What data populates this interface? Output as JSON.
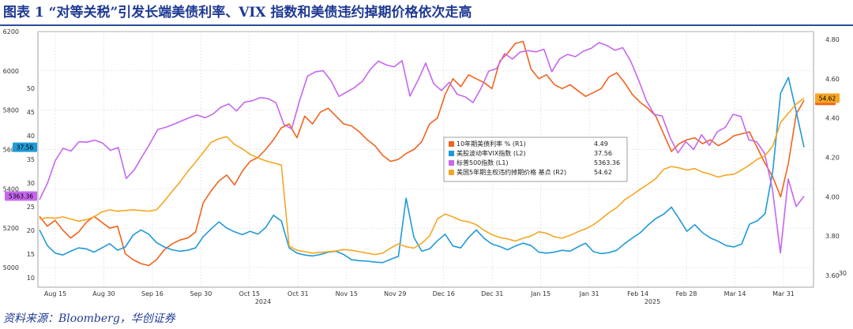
{
  "header": {
    "title": "图表 1  “对等关税”引发长端美债利率、VIX 指数和美债违约掉期价格依次走高"
  },
  "footer": {
    "source": "资料来源：Bloomberg，华创证券"
  },
  "colors": {
    "ust10y": "#f0641e",
    "vix": "#1f9ad6",
    "spx": "#c667ee",
    "cds": "#f5a623",
    "grid": "#d9d9d9"
  },
  "chart_data": {
    "type": "line",
    "title": "",
    "x_ticks": [
      "Aug 15",
      "Aug 30",
      "Sep 16",
      "Sep 30",
      "Oct 15",
      "Oct 31",
      "Nov 15",
      "Nov 29",
      "Dec 16",
      "Dec 31",
      "Jan 15",
      "Jan 31",
      "Feb 14",
      "Feb 28",
      "Mar 14",
      "Mar 31"
    ],
    "year_labels": [
      "2024",
      "2025"
    ],
    "axes": {
      "L1": {
        "min": 4900,
        "max": 6200,
        "ticks": [
          5000,
          5200,
          5400,
          5600,
          5800,
          6000,
          6200
        ]
      },
      "L2": {
        "min": 8,
        "max": 62,
        "ticks": [
          10,
          15,
          20,
          25,
          30,
          35,
          40,
          45,
          50
        ]
      },
      "R1": {
        "min": 3.54,
        "max": 4.84,
        "ticks": [
          3.6,
          3.8,
          4.0,
          4.2,
          4.4,
          4.6,
          4.8
        ]
      },
      "R2": {
        "min": 28,
        "max": 64,
        "ticks": [
          30
        ]
      }
    },
    "series": [
      {
        "name": "10年期美债利率 % (R1)",
        "axis": "R1",
        "color": "#f0641e",
        "last": "4.49",
        "badge": "4.49",
        "values": [
          3.9,
          3.85,
          3.88,
          3.83,
          3.79,
          3.82,
          3.87,
          3.9,
          3.87,
          3.84,
          3.85,
          3.71,
          3.68,
          3.66,
          3.65,
          3.68,
          3.73,
          3.76,
          3.78,
          3.79,
          3.82,
          3.97,
          4.03,
          4.08,
          4.11,
          4.06,
          4.13,
          4.18,
          4.2,
          4.24,
          4.29,
          4.35,
          4.37,
          4.3,
          4.41,
          4.37,
          4.43,
          4.45,
          4.41,
          4.37,
          4.36,
          4.33,
          4.29,
          4.26,
          4.21,
          4.18,
          4.19,
          4.22,
          4.24,
          4.28,
          4.37,
          4.4,
          4.52,
          4.6,
          4.56,
          4.62,
          4.6,
          4.58,
          4.55,
          4.69,
          4.73,
          4.78,
          4.79,
          4.65,
          4.6,
          4.62,
          4.57,
          4.55,
          4.57,
          4.54,
          4.51,
          4.53,
          4.55,
          4.61,
          4.63,
          4.58,
          4.52,
          4.48,
          4.45,
          4.41,
          4.32,
          4.23,
          4.27,
          4.29,
          4.3,
          4.27,
          4.29,
          4.26,
          4.28,
          4.31,
          4.32,
          4.33,
          4.25,
          4.17,
          4.1,
          4.0,
          4.17,
          4.42,
          4.49
        ]
      },
      {
        "name": "美股波动率VIX指数 (L2)",
        "axis": "L2",
        "color": "#1f9ad6",
        "last": "37.56",
        "badge": "37.56",
        "values": [
          20.1,
          16.8,
          15.2,
          14.8,
          15.6,
          16.3,
          16.1,
          15.4,
          16.3,
          17.2,
          15.8,
          16.5,
          19.0,
          20.1,
          19.2,
          17.4,
          16.5,
          15.9,
          15.6,
          15.8,
          16.3,
          18.7,
          20.3,
          21.8,
          20.5,
          19.7,
          19.1,
          19.8,
          19.2,
          20.6,
          23.2,
          22.0,
          16.3,
          15.2,
          14.8,
          14.6,
          14.9,
          15.4,
          15.6,
          14.9,
          13.8,
          13.6,
          13.5,
          13.3,
          13.2,
          13.9,
          14.5,
          26.8,
          18.5,
          15.6,
          16.1,
          17.8,
          19.2,
          16.7,
          16.3,
          18.5,
          20.1,
          18.3,
          17.1,
          16.6,
          15.9,
          16.7,
          17.3,
          16.8,
          15.4,
          15.2,
          15.4,
          15.8,
          15.6,
          16.5,
          17.3,
          15.5,
          15.1,
          15.3,
          15.8,
          17.2,
          18.4,
          19.5,
          21.1,
          22.5,
          23.4,
          24.9,
          22.4,
          19.8,
          21.2,
          19.5,
          18.4,
          17.7,
          16.8,
          16.5,
          17.1,
          21.3,
          22.0,
          23.5,
          32.6,
          49.0,
          52.3,
          45.1,
          37.56
        ]
      },
      {
        "name": "标普500指数 (L1)",
        "axis": "L1",
        "color": "#c667ee",
        "last": "5363.36",
        "badge": "5363.36",
        "values": [
          5345,
          5428,
          5544,
          5606,
          5592,
          5640,
          5637,
          5648,
          5633,
          5596,
          5610,
          5453,
          5495,
          5563,
          5629,
          5702,
          5713,
          5728,
          5745,
          5762,
          5776,
          5762,
          5780,
          5815,
          5832,
          5796,
          5841,
          5848,
          5864,
          5859,
          5838,
          5728,
          5705,
          5849,
          5973,
          5995,
          6001,
          5949,
          5870,
          5893,
          5916,
          5949,
          6009,
          6050,
          6030,
          6021,
          6052,
          5872,
          5950,
          6040,
          5936,
          5900,
          5942,
          5881,
          5868,
          5839,
          5910,
          5999,
          6012,
          6088,
          6060,
          6096,
          6103,
          6097,
          6110,
          5996,
          6061,
          6084,
          6072,
          6100,
          6115,
          6144,
          6129,
          6105,
          6118,
          6050,
          5955,
          5849,
          5779,
          5770,
          5661,
          5583,
          5640,
          5600,
          5675,
          5621,
          5691,
          5712,
          5779,
          5768,
          5649,
          5640,
          5580,
          5396,
          5074,
          5450,
          5310,
          5363
        ]
      },
      {
        "name": "美国5年期主权违约掉期价格 基点 (R2)",
        "axis": "R2",
        "color": "#f5a623",
        "last": "54.62",
        "badge": "54.62",
        "values": [
          37.6,
          37.8,
          37.7,
          37.9,
          37.6,
          37.3,
          37.5,
          37.9,
          38.6,
          38.9,
          38.7,
          38.8,
          38.9,
          38.8,
          38.7,
          38.9,
          40.1,
          41.5,
          42.8,
          44.3,
          45.6,
          47.0,
          48.4,
          48.9,
          49.2,
          48.1,
          47.5,
          46.7,
          46.2,
          45.8,
          45.5,
          45.2,
          33.8,
          33.2,
          33.0,
          32.8,
          32.9,
          33.0,
          33.1,
          33.3,
          33.2,
          33.0,
          32.8,
          32.6,
          32.8,
          33.5,
          34.1,
          33.7,
          33.5,
          34.2,
          35.2,
          37.6,
          38.3,
          37.9,
          37.4,
          37.2,
          36.8,
          36.0,
          35.4,
          35.0,
          34.8,
          34.5,
          34.9,
          35.2,
          35.8,
          35.6,
          35.1,
          34.9,
          35.3,
          35.8,
          36.2,
          36.8,
          37.6,
          38.5,
          39.2,
          40.3,
          41.0,
          41.8,
          42.5,
          43.3,
          44.6,
          45.0,
          44.8,
          44.5,
          44.7,
          44.2,
          43.9,
          43.5,
          43.8,
          43.9,
          44.5,
          45.2,
          46.0,
          46.5,
          47.9,
          51.2,
          52.5,
          53.8,
          54.62
        ]
      }
    ],
    "legend_placement": "center-right"
  }
}
